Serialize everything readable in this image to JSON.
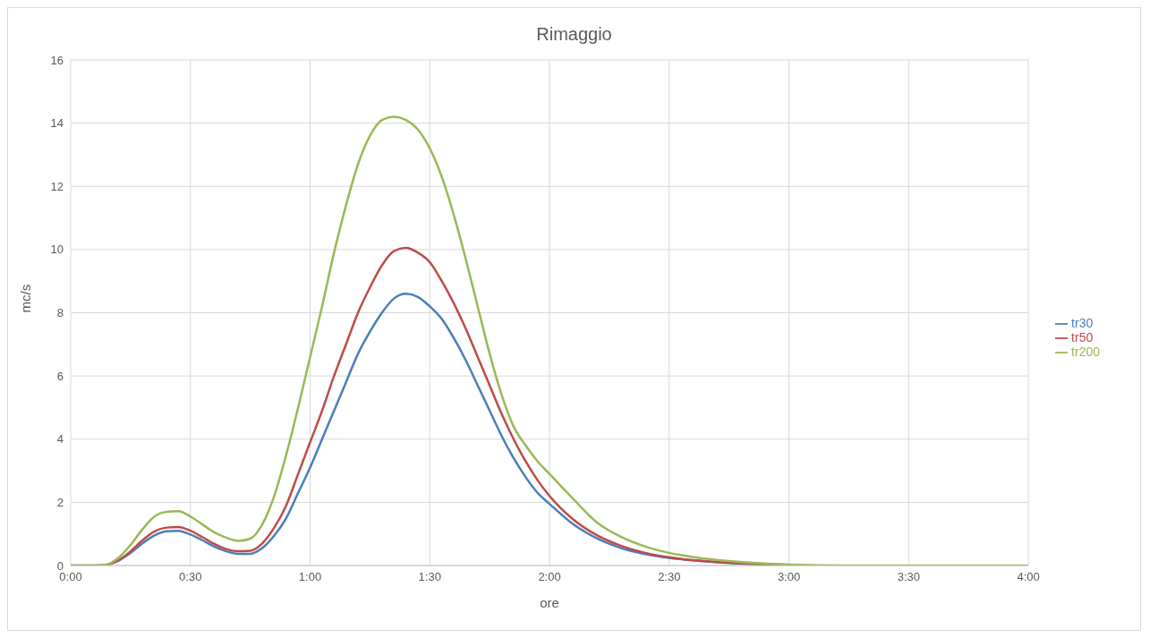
{
  "chart_data": {
    "type": "line",
    "title": "Rimaggio",
    "xlabel": "ore",
    "ylabel": "mc/s",
    "x": [
      0,
      0.1,
      0.15,
      0.2,
      0.25,
      0.3,
      0.35,
      0.4,
      0.45,
      0.5,
      0.55,
      0.6,
      0.65,
      0.7,
      0.75,
      0.8,
      0.85,
      0.9,
      0.95,
      1.0,
      1.05,
      1.1,
      1.15,
      1.2,
      1.25,
      1.3,
      1.35,
      1.4,
      1.45,
      1.5,
      1.55,
      1.6,
      1.65,
      1.7,
      1.75,
      1.8,
      1.85,
      1.9,
      1.95,
      2.0,
      2.1,
      2.2,
      2.3,
      2.4,
      2.5,
      2.6,
      2.75,
      3.0,
      3.25,
      3.5,
      4.0
    ],
    "series": [
      {
        "name": "tr30",
        "color": "#4a7ebb",
        "values": [
          null,
          null,
          0.02,
          0.15,
          0.4,
          0.7,
          0.95,
          1.08,
          1.1,
          0.98,
          0.8,
          0.6,
          0.45,
          0.37,
          0.37,
          0.55,
          0.95,
          1.5,
          2.3,
          3.1,
          4.0,
          4.9,
          5.8,
          6.7,
          7.4,
          8.0,
          8.45,
          8.6,
          8.5,
          8.2,
          7.8,
          7.2,
          6.5,
          5.7,
          4.9,
          4.1,
          3.4,
          2.8,
          2.3,
          1.95,
          1.3,
          0.85,
          0.55,
          0.36,
          0.24,
          0.16,
          0.08,
          0.02,
          null,
          null,
          null
        ]
      },
      {
        "name": "tr50",
        "color": "#be4b48",
        "values": [
          0,
          0,
          0.02,
          0.17,
          0.45,
          0.8,
          1.08,
          1.2,
          1.22,
          1.1,
          0.9,
          0.68,
          0.52,
          0.45,
          0.47,
          0.7,
          1.2,
          1.9,
          2.9,
          3.9,
          4.9,
          6.0,
          7.0,
          8.0,
          8.8,
          9.5,
          9.95,
          10.05,
          9.9,
          9.6,
          9.0,
          8.3,
          7.5,
          6.6,
          5.7,
          4.8,
          4.0,
          3.3,
          2.7,
          2.2,
          1.45,
          0.95,
          0.62,
          0.4,
          0.26,
          0.17,
          0.09,
          0.02,
          null,
          null,
          null
        ]
      },
      {
        "name": "tr200",
        "color": "#98b954",
        "values": [
          0,
          0,
          0.03,
          0.25,
          0.65,
          1.15,
          1.55,
          1.7,
          1.72,
          1.55,
          1.3,
          1.05,
          0.88,
          0.78,
          0.85,
          1.3,
          2.2,
          3.5,
          5.0,
          6.6,
          8.2,
          9.9,
          11.4,
          12.7,
          13.6,
          14.1,
          14.2,
          14.1,
          13.8,
          13.2,
          12.3,
          11.1,
          9.7,
          8.2,
          6.7,
          5.4,
          4.4,
          3.8,
          3.3,
          2.9,
          2.1,
          1.35,
          0.9,
          0.6,
          0.4,
          0.27,
          0.14,
          0.03,
          0,
          0,
          0
        ]
      }
    ],
    "xlim": [
      0,
      4
    ],
    "xticks": [
      {
        "value": 0,
        "label": "0:00"
      },
      {
        "value": 0.5,
        "label": "0:30"
      },
      {
        "value": 1,
        "label": "1:00"
      },
      {
        "value": 1.5,
        "label": "1:30"
      },
      {
        "value": 2,
        "label": "2:00"
      },
      {
        "value": 2.5,
        "label": "2:30"
      },
      {
        "value": 3,
        "label": "3:00"
      },
      {
        "value": 3.5,
        "label": "3:30"
      },
      {
        "value": 4,
        "label": "4:00"
      }
    ],
    "ylim": [
      0,
      16
    ],
    "yticks": [
      0,
      2,
      4,
      6,
      8,
      10,
      12,
      14,
      16
    ],
    "grid": true,
    "legend": "right",
    "marker": "none",
    "line_style": "solid"
  }
}
